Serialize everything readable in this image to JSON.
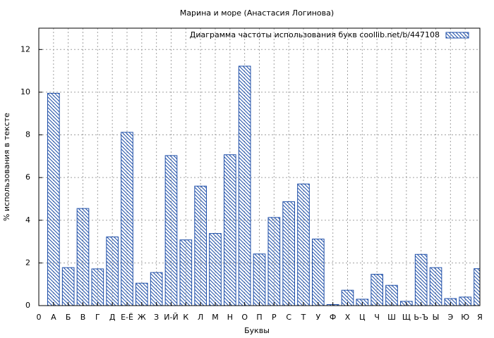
{
  "chart_data": {
    "type": "bar",
    "title": "Марина и море (Анастасия Логинова)",
    "xlabel": "Буквы",
    "ylabel": "% использования в тексте",
    "categories": [
      "0",
      "А",
      "Б",
      "В",
      "Г",
      "Д",
      "Е-Ё",
      "Ж",
      "З",
      "И-Й",
      "К",
      "Л",
      "М",
      "Н",
      "О",
      "П",
      "Р",
      "С",
      "Т",
      "У",
      "Ф",
      "Х",
      "Ц",
      "Ч",
      "Ш",
      "Щ",
      "Ь-Ъ",
      "Ы",
      "Э",
      "Ю",
      "Я"
    ],
    "series": [
      {
        "name": "Диаграмма частоты использования букв  coollib.net/b/447108",
        "color": "#1f4fa8",
        "values": [
          null,
          9.95,
          1.78,
          4.55,
          1.72,
          3.22,
          8.12,
          1.05,
          1.55,
          7.03,
          3.08,
          5.6,
          3.38,
          7.07,
          11.22,
          2.42,
          4.13,
          4.87,
          5.7,
          3.12,
          0.05,
          0.72,
          0.3,
          1.47,
          0.95,
          0.2,
          2.4,
          1.78,
          0.33,
          0.4,
          1.73
        ]
      }
    ],
    "ylim": [
      0,
      13
    ],
    "yticks": [
      0,
      2,
      4,
      6,
      8,
      10,
      12
    ],
    "grid": true,
    "legend": "top-right"
  }
}
